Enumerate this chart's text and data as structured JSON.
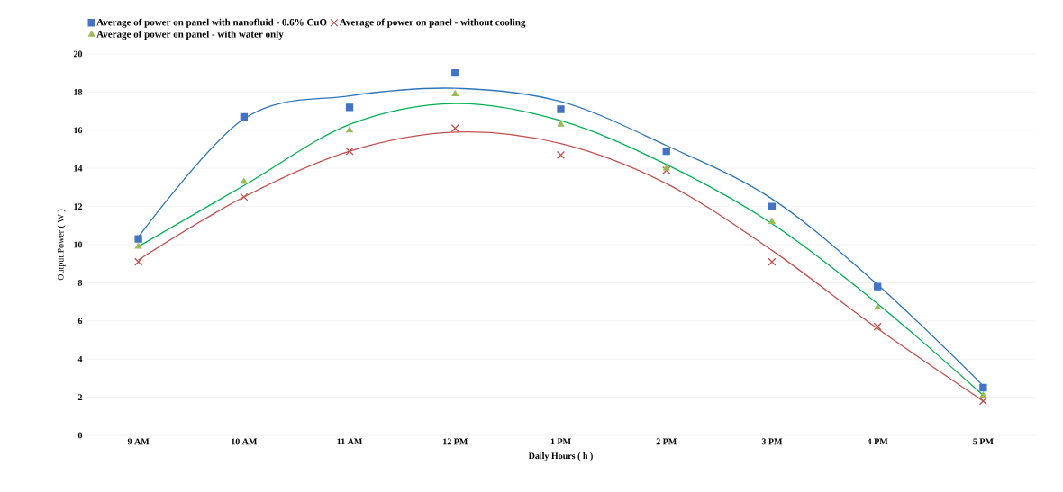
{
  "chart_data": {
    "type": "scatter",
    "xlabel": "Daily Hours ( h )",
    "ylabel": "Output Power ( W )",
    "categories": [
      "9 AM",
      "10 AM",
      "11 AM",
      "12 PM",
      "1 PM",
      "2 PM",
      "3 PM",
      "4 PM",
      "5 PM"
    ],
    "series": [
      {
        "name": "Average of power on   panel with nanofluid  - 0.6% CuO",
        "color": "#4472c4",
        "marker": "square",
        "values": [
          10.3,
          16.7,
          17.2,
          19.0,
          17.1,
          14.9,
          12.0,
          7.8,
          2.5
        ]
      },
      {
        "name": "Average of power  on panel -    without cooling",
        "color": "#c0504d",
        "marker": "cross",
        "values": [
          9.1,
          12.5,
          14.9,
          16.1,
          14.7,
          13.9,
          9.1,
          5.7,
          1.8
        ]
      },
      {
        "name": "Average of power on panel  - with water only",
        "color": "#9bbb59",
        "marker": "triangle",
        "values": [
          9.9,
          13.3,
          16.0,
          17.9,
          16.3,
          14.0,
          11.2,
          6.7,
          2.1
        ]
      },
      {
        "type": "line",
        "color": "#2e75b6",
        "marker": "none",
        "values": [
          10.4,
          16.6,
          17.8,
          18.2,
          17.5,
          15.2,
          12.4,
          7.9,
          2.6
        ]
      },
      {
        "type": "line",
        "color": "#c0504d",
        "marker": "none",
        "values": [
          9.2,
          12.5,
          14.9,
          15.9,
          15.3,
          13.2,
          9.7,
          5.6,
          1.8
        ]
      },
      {
        "type": "line",
        "color": "#00b050",
        "marker": "none",
        "values": [
          9.9,
          13.1,
          16.3,
          17.4,
          16.5,
          14.2,
          11.1,
          6.9,
          2.1
        ]
      }
    ],
    "ylim": [
      0,
      20
    ],
    "yticks": [
      0,
      2,
      4,
      6,
      8,
      10,
      12,
      14,
      16,
      18,
      20
    ],
    "grid": "y",
    "legend": "top"
  }
}
